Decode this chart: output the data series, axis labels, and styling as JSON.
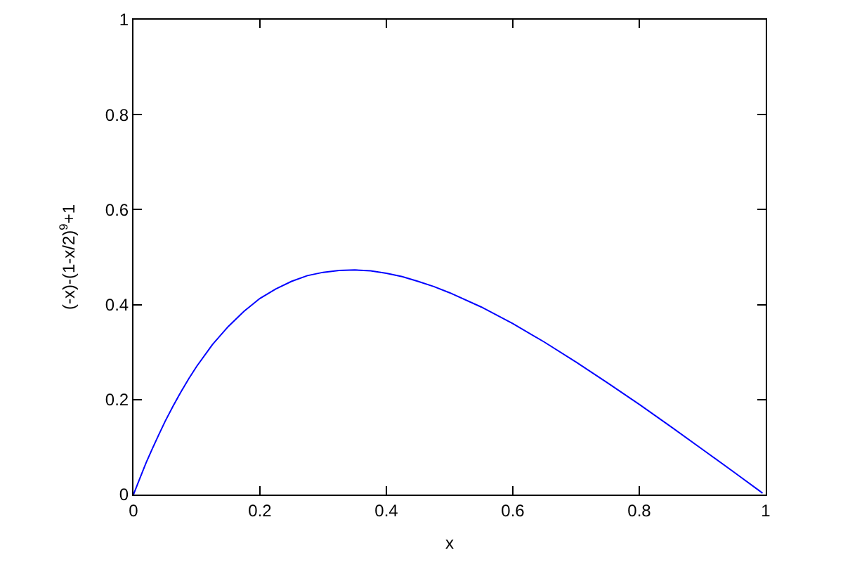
{
  "chart_data": {
    "type": "line",
    "xlabel": "x",
    "ylabel": "(-x)-(1-x/2)$^{9}$+1",
    "xlim": [
      0,
      1
    ],
    "ylim": [
      0,
      1
    ],
    "xticks": [
      0,
      0.2,
      0.4,
      0.6,
      0.8,
      1
    ],
    "yticks": [
      0,
      0.2,
      0.4,
      0.6,
      0.8,
      1
    ],
    "grid": false,
    "line_style": "solid",
    "series": [
      {
        "color": "#0000ff",
        "x": [
          0,
          0.01,
          0.02,
          0.03,
          0.04,
          0.05,
          0.0625,
          0.075,
          0.0875,
          0.1,
          0.125,
          0.15,
          0.175,
          0.2,
          0.225,
          0.25,
          0.275,
          0.3,
          0.325,
          0.35,
          0.375,
          0.4,
          0.425,
          0.45,
          0.475,
          0.5,
          0.55,
          0.6,
          0.65,
          0.7,
          0.75,
          0.8,
          0.85,
          0.9,
          0.95,
          0.99,
          0.995
        ],
        "values": [
          0,
          0.034,
          0.067,
          0.097,
          0.126,
          0.154,
          0.186,
          0.216,
          0.244,
          0.27,
          0.316,
          0.354,
          0.386,
          0.413,
          0.433,
          0.449,
          0.461,
          0.468,
          0.472,
          0.473,
          0.471,
          0.466,
          0.459,
          0.449,
          0.438,
          0.425,
          0.395,
          0.36,
          0.321,
          0.279,
          0.235,
          0.19,
          0.143,
          0.095,
          0.047,
          0.008,
          0.003
        ]
      }
    ]
  }
}
